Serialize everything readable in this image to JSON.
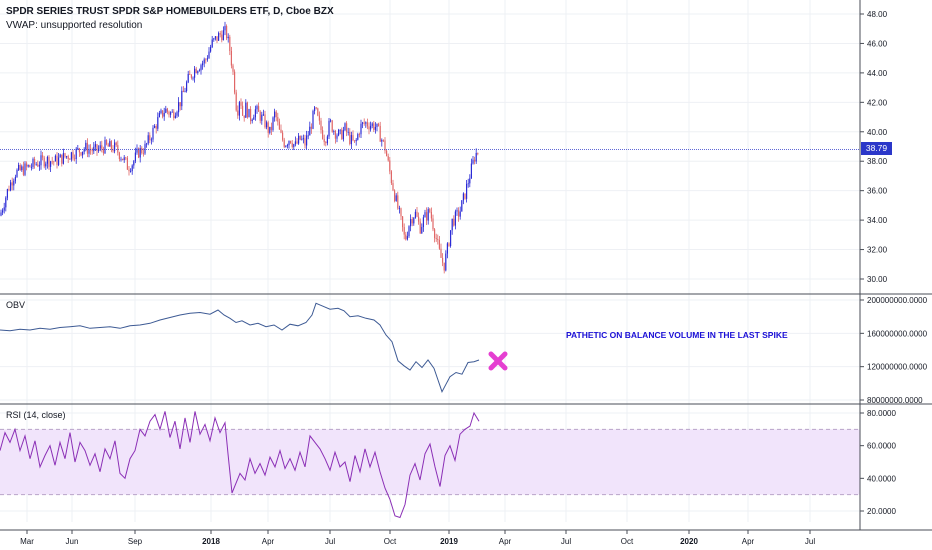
{
  "header": {
    "symbol_title": "SPDR SERIES TRUST SPDR S&P HOMEBUILDERS ETF, D, Cboe BZX",
    "vwap_label": "VWAP: unsupported resolution"
  },
  "last_price_label": "38.79",
  "annotation": "PATHETIC ON BALANCE VOLUME IN THE LAST SPIKE",
  "colors": {
    "up": "#2b2bd6",
    "down": "#e06666",
    "obv": "#3d5a94",
    "rsi": "#8b2fb6",
    "rsi_band": "#f1e4fb",
    "marker": "#e53fd1",
    "price_line": "#2b37c9"
  },
  "chart_data": [
    {
      "type": "candlestick",
      "title": "SPDR SERIES TRUST SPDR S&P HOMEBUILDERS ETF, D, Cboe BZX",
      "yticks": [
        "48.00",
        "46.00",
        "44.00",
        "42.00",
        "40.00",
        "38.00",
        "36.00",
        "34.00",
        "32.00",
        "30.00"
      ],
      "ylim": [
        29.2,
        48.5
      ],
      "last_price": 38.79,
      "x_ticks": [
        "Mar",
        "Jun",
        "Sep",
        "2018",
        "Apr",
        "Jul",
        "Oct",
        "2019",
        "Apr",
        "Jul",
        "Oct",
        "2020",
        "Apr",
        "Jul"
      ],
      "close_path": [
        [
          0,
          34.3
        ],
        [
          8,
          36.1
        ],
        [
          15,
          37.2
        ],
        [
          25,
          37.5
        ],
        [
          35,
          37.8
        ],
        [
          45,
          38.1
        ],
        [
          55,
          38.0
        ],
        [
          65,
          38.3
        ],
        [
          75,
          38.6
        ],
        [
          85,
          38.9
        ],
        [
          95,
          38.7
        ],
        [
          105,
          39.0
        ],
        [
          115,
          38.9
        ],
        [
          122,
          38.3
        ],
        [
          128,
          37.6
        ],
        [
          133,
          37.9
        ],
        [
          138,
          38.6
        ],
        [
          145,
          38.9
        ],
        [
          150,
          39.6
        ],
        [
          158,
          40.8
        ],
        [
          165,
          41.5
        ],
        [
          172,
          41.2
        ],
        [
          180,
          42.0
        ],
        [
          188,
          43.5
        ],
        [
          195,
          44.3
        ],
        [
          205,
          44.8
        ],
        [
          212,
          46.0
        ],
        [
          220,
          46.6
        ],
        [
          226,
          46.8
        ],
        [
          230,
          45.5
        ],
        [
          234,
          43.5
        ],
        [
          237,
          41.2
        ],
        [
          240,
          42.5
        ],
        [
          243,
          41.0
        ],
        [
          246,
          41.7
        ],
        [
          250,
          40.9
        ],
        [
          255,
          41.5
        ],
        [
          260,
          41.1
        ],
        [
          265,
          40.6
        ],
        [
          270,
          39.9
        ],
        [
          275,
          41.3
        ],
        [
          280,
          39.8
        ],
        [
          285,
          39.2
        ],
        [
          290,
          39.6
        ],
        [
          295,
          39.0
        ],
        [
          300,
          39.5
        ],
        [
          305,
          39.2
        ],
        [
          310,
          40.2
        ],
        [
          315,
          41.5
        ],
        [
          320,
          40.3
        ],
        [
          325,
          39.5
        ],
        [
          330,
          40.6
        ],
        [
          335,
          40.0
        ],
        [
          340,
          39.7
        ],
        [
          345,
          40.2
        ],
        [
          350,
          39.5
        ],
        [
          355,
          39.1
        ],
        [
          360,
          40.3
        ],
        [
          365,
          40.6
        ],
        [
          370,
          40.5
        ],
        [
          375,
          40.4
        ],
        [
          380,
          39.8
        ],
        [
          385,
          38.9
        ],
        [
          390,
          37.2
        ],
        [
          395,
          35.6
        ],
        [
          400,
          34.2
        ],
        [
          405,
          32.6
        ],
        [
          410,
          34.0
        ],
        [
          415,
          34.5
        ],
        [
          420,
          33.5
        ],
        [
          425,
          34.2
        ],
        [
          430,
          34.6
        ],
        [
          435,
          33.1
        ],
        [
          440,
          31.6
        ],
        [
          444,
          30.9
        ],
        [
          448,
          32.2
        ],
        [
          452,
          33.9
        ],
        [
          456,
          34.2
        ],
        [
          460,
          34.6
        ],
        [
          465,
          35.8
        ],
        [
          470,
          37.1
        ],
        [
          475,
          38.4
        ],
        [
          479,
          38.79
        ]
      ]
    },
    {
      "type": "line",
      "title": "OBV",
      "yticks": [
        "200000000.0000",
        "160000000.0000",
        "120000000.0000",
        "80000000.0000"
      ],
      "ylim": [
        78000000,
        202000000
      ],
      "points": [
        [
          0,
          164
        ],
        [
          10,
          163
        ],
        [
          20,
          165
        ],
        [
          30,
          164
        ],
        [
          40,
          166
        ],
        [
          50,
          165
        ],
        [
          60,
          167
        ],
        [
          70,
          168
        ],
        [
          80,
          169
        ],
        [
          90,
          166
        ],
        [
          100,
          167
        ],
        [
          110,
          168
        ],
        [
          120,
          166
        ],
        [
          130,
          169
        ],
        [
          140,
          170
        ],
        [
          150,
          172
        ],
        [
          160,
          176
        ],
        [
          170,
          179
        ],
        [
          180,
          182
        ],
        [
          190,
          184
        ],
        [
          200,
          185
        ],
        [
          210,
          183
        ],
        [
          218,
          188
        ],
        [
          224,
          182
        ],
        [
          230,
          178
        ],
        [
          236,
          173
        ],
        [
          242,
          175
        ],
        [
          250,
          170
        ],
        [
          258,
          172
        ],
        [
          266,
          168
        ],
        [
          274,
          170
        ],
        [
          282,
          164
        ],
        [
          290,
          171
        ],
        [
          298,
          169
        ],
        [
          306,
          173
        ],
        [
          312,
          182
        ],
        [
          316,
          196
        ],
        [
          322,
          193
        ],
        [
          330,
          189
        ],
        [
          338,
          190
        ],
        [
          344,
          187
        ],
        [
          350,
          180
        ],
        [
          358,
          181
        ],
        [
          366,
          178
        ],
        [
          374,
          176
        ],
        [
          380,
          170
        ],
        [
          386,
          158
        ],
        [
          392,
          150
        ],
        [
          398,
          127
        ],
        [
          404,
          121
        ],
        [
          410,
          116
        ],
        [
          416,
          126
        ],
        [
          422,
          119
        ],
        [
          428,
          128
        ],
        [
          434,
          118
        ],
        [
          438,
          104
        ],
        [
          442,
          90
        ],
        [
          446,
          99
        ],
        [
          450,
          108
        ],
        [
          456,
          113
        ],
        [
          462,
          111
        ],
        [
          468,
          125
        ],
        [
          474,
          126
        ],
        [
          479,
          128
        ]
      ]
    },
    {
      "type": "line",
      "title": "RSI (14, close)",
      "yticks": [
        "80.0000",
        "60.0000",
        "40.0000",
        "20.0000"
      ],
      "ylim": [
        12,
        83
      ],
      "band": [
        30,
        70
      ],
      "points": [
        [
          0,
          57
        ],
        [
          5,
          68
        ],
        [
          10,
          62
        ],
        [
          15,
          70
        ],
        [
          20,
          57
        ],
        [
          25,
          66
        ],
        [
          30,
          52
        ],
        [
          35,
          63
        ],
        [
          40,
          47
        ],
        [
          45,
          54
        ],
        [
          50,
          60
        ],
        [
          55,
          48
        ],
        [
          60,
          62
        ],
        [
          65,
          52
        ],
        [
          70,
          68
        ],
        [
          75,
          50
        ],
        [
          80,
          62
        ],
        [
          85,
          57
        ],
        [
          90,
          48
        ],
        [
          95,
          55
        ],
        [
          100,
          44
        ],
        [
          105,
          58
        ],
        [
          110,
          52
        ],
        [
          115,
          63
        ],
        [
          120,
          43
        ],
        [
          125,
          40
        ],
        [
          130,
          52
        ],
        [
          135,
          57
        ],
        [
          140,
          70
        ],
        [
          145,
          66
        ],
        [
          150,
          75
        ],
        [
          155,
          79
        ],
        [
          160,
          70
        ],
        [
          165,
          81
        ],
        [
          170,
          65
        ],
        [
          175,
          75
        ],
        [
          180,
          58
        ],
        [
          185,
          77
        ],
        [
          190,
          62
        ],
        [
          195,
          81
        ],
        [
          200,
          67
        ],
        [
          205,
          73
        ],
        [
          210,
          63
        ],
        [
          215,
          77
        ],
        [
          220,
          68
        ],
        [
          225,
          74
        ],
        [
          228,
          55
        ],
        [
          232,
          31
        ],
        [
          236,
          37
        ],
        [
          240,
          43
        ],
        [
          245,
          39
        ],
        [
          250,
          52
        ],
        [
          255,
          43
        ],
        [
          260,
          49
        ],
        [
          265,
          42
        ],
        [
          270,
          53
        ],
        [
          275,
          47
        ],
        [
          280,
          57
        ],
        [
          285,
          46
        ],
        [
          290,
          52
        ],
        [
          295,
          45
        ],
        [
          300,
          56
        ],
        [
          305,
          47
        ],
        [
          310,
          66
        ],
        [
          315,
          62
        ],
        [
          320,
          58
        ],
        [
          325,
          52
        ],
        [
          330,
          45
        ],
        [
          335,
          56
        ],
        [
          340,
          47
        ],
        [
          345,
          50
        ],
        [
          350,
          38
        ],
        [
          355,
          54
        ],
        [
          360,
          44
        ],
        [
          365,
          58
        ],
        [
          370,
          47
        ],
        [
          375,
          56
        ],
        [
          380,
          44
        ],
        [
          385,
          34
        ],
        [
          390,
          27
        ],
        [
          395,
          17
        ],
        [
          400,
          16
        ],
        [
          405,
          24
        ],
        [
          410,
          42
        ],
        [
          415,
          49
        ],
        [
          420,
          39
        ],
        [
          425,
          55
        ],
        [
          430,
          61
        ],
        [
          435,
          47
        ],
        [
          440,
          35
        ],
        [
          445,
          54
        ],
        [
          450,
          60
        ],
        [
          455,
          51
        ],
        [
          460,
          67
        ],
        [
          465,
          70
        ],
        [
          470,
          72
        ],
        [
          474,
          80
        ],
        [
          479,
          75
        ]
      ]
    }
  ]
}
